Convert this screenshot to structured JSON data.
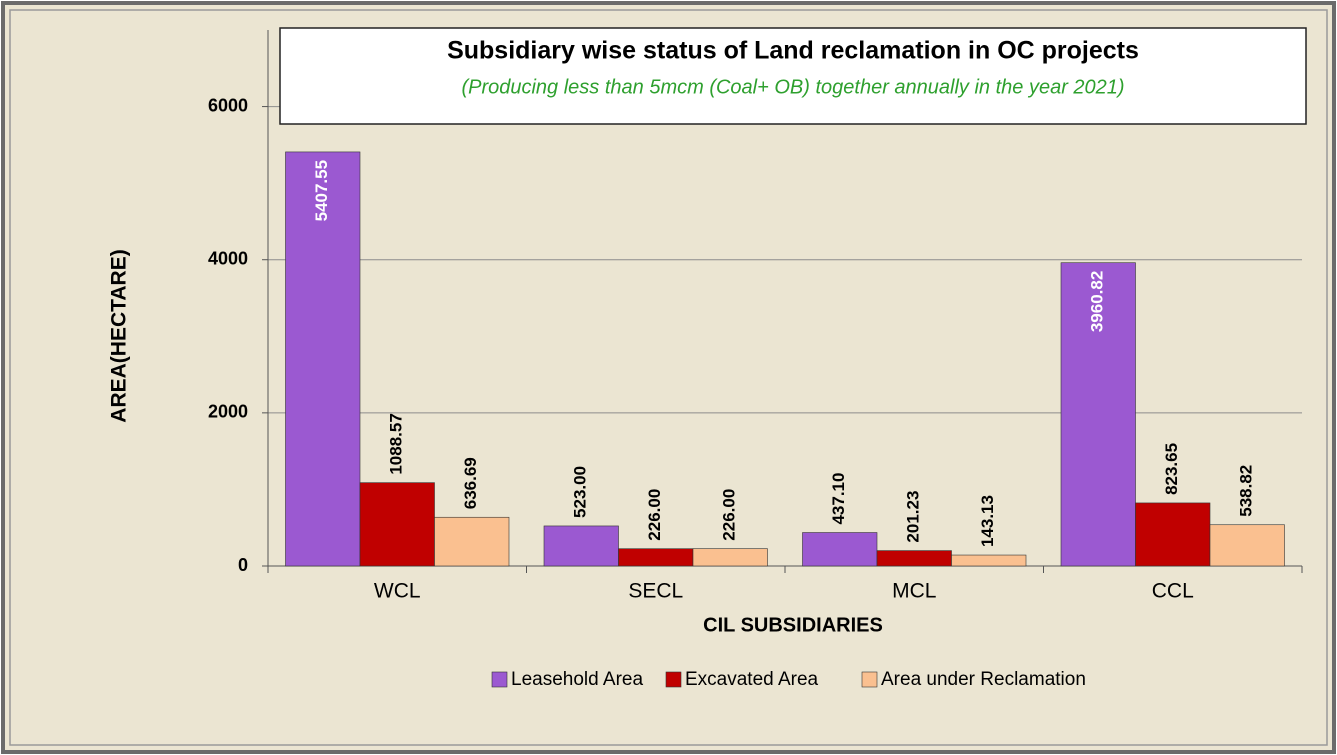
{
  "chart_data": {
    "type": "bar",
    "title": "Subsidiary wise status of Land reclamation in OC projects",
    "subtitle": "(Producing less than 5mcm (Coal+ OB) together annually in the year 2021)",
    "x_label": "CIL SUBSIDIARIES",
    "y_label": "AREA(HECTARE)",
    "categories": [
      "WCL",
      "SECL",
      "MCL",
      "CCL"
    ],
    "series": [
      {
        "name": "Leasehold Area",
        "color": "#9b59d1",
        "values": [
          5407.55,
          523,
          437.1,
          3960.82
        ],
        "value_labels": [
          "5407.55",
          "523.00",
          "437.10",
          "3960.82"
        ]
      },
      {
        "name": "Excavated Area",
        "color": "#c00000",
        "values": [
          1088.57,
          226,
          201.23,
          823.65
        ],
        "value_labels": [
          "1088.57",
          "226.00",
          "201.23",
          "823.65"
        ]
      },
      {
        "name": "Area under Reclamation",
        "color": "#fac090",
        "values": [
          636.69,
          226,
          143.13,
          538.82
        ],
        "value_labels": [
          "636.69",
          "226.00",
          "143.13",
          "538.82"
        ]
      }
    ],
    "ylim": [
      0,
      7000
    ],
    "yticks": [
      0,
      2000,
      4000,
      6000
    ],
    "grid": true,
    "legend": "bottom"
  }
}
